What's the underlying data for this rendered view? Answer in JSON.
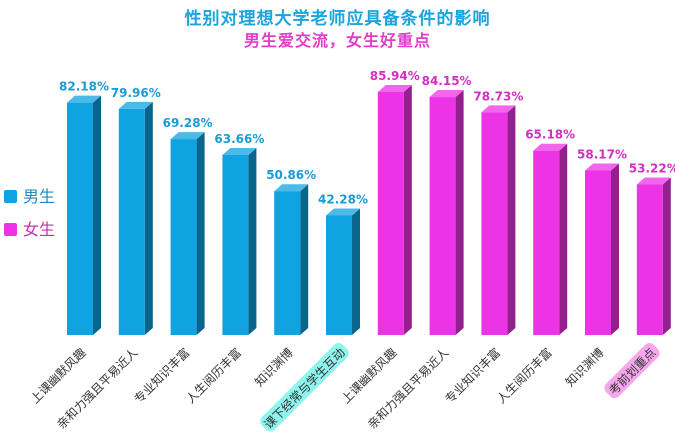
{
  "title": "性别对理想大学老师应具备条件的影响",
  "subtitle": "男生爱交流，女生好重点",
  "legend": [
    {
      "name": "男生",
      "color": "#0fa3e2",
      "text_color": "#1a8bc4"
    },
    {
      "name": "女生",
      "color": "#ec33e6",
      "text_color": "#c42fae"
    }
  ],
  "chart_data": {
    "type": "bar",
    "series": [
      {
        "name": "男生",
        "color": "#0fa3e2",
        "label_color": "#1a9bd6",
        "categories": [
          "上课幽默风趣",
          "亲和力强且平易近人",
          "专业知识丰富",
          "人生阅历丰富",
          "知识渊博",
          "课下经常与学生互动"
        ],
        "values": [
          82.18,
          79.96,
          69.28,
          63.66,
          50.86,
          42.28
        ],
        "labels": [
          "82.18%",
          "79.96%",
          "69.28%",
          "63.66%",
          "50.86%",
          "42.28%"
        ],
        "highlight": "课下经常与学生互动",
        "highlight_color": "#8ef4ee"
      },
      {
        "name": "女生",
        "color": "#ec33e6",
        "label_color": "#d22fc4",
        "categories": [
          "上课幽默风趣",
          "亲和力强且平易近人",
          "专业知识丰富",
          "人生阅历丰富",
          "知识渊博",
          "考前划重点"
        ],
        "values": [
          85.94,
          84.15,
          78.73,
          65.18,
          58.17,
          53.22
        ],
        "labels": [
          "85.94%",
          "84.15%",
          "78.73%",
          "65.18%",
          "58.17%",
          "53.22%"
        ],
        "highlight": "考前划重点",
        "highlight_color": "#f7a8ec"
      }
    ],
    "grid": false
  }
}
